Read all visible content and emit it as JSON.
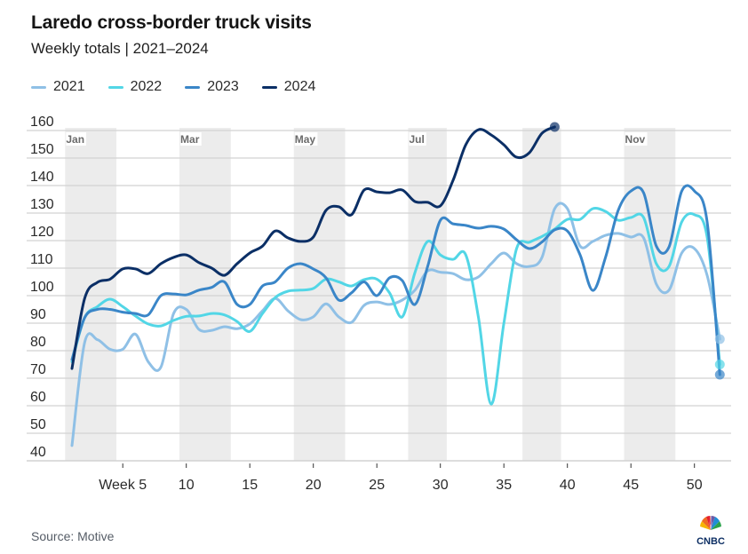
{
  "header": {
    "title": "Laredo cross-border truck visits",
    "subtitle": "Weekly totals | 2021–2024"
  },
  "footer": {
    "source": "Source: Motive",
    "logo_text": "CNBC"
  },
  "chart_data": {
    "type": "line",
    "title": "Laredo cross-border truck visits",
    "subtitle": "Weekly totals | 2021–2024",
    "xlabel": "",
    "ylabel": "",
    "xlim": [
      1,
      52
    ],
    "ylim": [
      40,
      160
    ],
    "grid": true,
    "legend_position": "top-left",
    "y_ticks": [
      40,
      50,
      60,
      70,
      80,
      90,
      100,
      110,
      120,
      130,
      140,
      150,
      160
    ],
    "x_ticks": [
      {
        "value": 5,
        "label": "Week 5"
      },
      {
        "value": 10,
        "label": "10"
      },
      {
        "value": 15,
        "label": "15"
      },
      {
        "value": 20,
        "label": "20"
      },
      {
        "value": 25,
        "label": "25"
      },
      {
        "value": 30,
        "label": "30"
      },
      {
        "value": 35,
        "label": "35"
      },
      {
        "value": 40,
        "label": "40"
      },
      {
        "value": 45,
        "label": "45"
      },
      {
        "value": 50,
        "label": "50"
      }
    ],
    "month_bands": [
      {
        "label": "Jan",
        "start_week": 0.5,
        "end_week": 4.5
      },
      {
        "label": "Mar",
        "start_week": 9.5,
        "end_week": 13.5
      },
      {
        "label": "May",
        "start_week": 18.5,
        "end_week": 22.5
      },
      {
        "label": "Jul",
        "start_week": 27.5,
        "end_week": 30.5
      },
      {
        "label": "",
        "start_week": 36.5,
        "end_week": 39.5
      },
      {
        "label": "Nov",
        "start_week": 44.5,
        "end_week": 48.5
      }
    ],
    "series": [
      {
        "name": "2021",
        "color": "#8fc0e6",
        "end_marker": true,
        "values": [
          45.5,
          83,
          84,
          80.5,
          80.5,
          86,
          76,
          74,
          93.5,
          95,
          87.7,
          87.4,
          88.7,
          88,
          89.7,
          94.5,
          99,
          94.5,
          91.3,
          92.3,
          97,
          92.3,
          90.3,
          96.5,
          97.7,
          96.8,
          98.4,
          102,
          109,
          108.5,
          108,
          105.8,
          106.8,
          111.6,
          115.5,
          111.6,
          110.6,
          113.9,
          131.6,
          131.6,
          118,
          119.7,
          121.9,
          122.6,
          121.3,
          121,
          104.2,
          102,
          115.5,
          117.1,
          107.4,
          84.2
        ]
      },
      {
        "name": "2022",
        "color": "#52d6e6",
        "end_marker": true,
        "values": [
          76,
          92,
          96,
          98.7,
          96,
          92.6,
          89.7,
          89,
          91,
          92.5,
          92.6,
          93.5,
          93,
          90.6,
          87,
          93.5,
          99.3,
          101.6,
          102,
          102.6,
          106,
          105,
          103.5,
          105.8,
          106,
          101,
          92.3,
          108.4,
          119.7,
          114.8,
          113.2,
          114.8,
          92,
          60.6,
          90,
          117.1,
          119.4,
          121.5,
          124.2,
          127.7,
          127.7,
          131.6,
          130.6,
          127.4,
          128.4,
          128.4,
          111.6,
          110.6,
          126.8,
          129.4,
          121.3,
          75
        ]
      },
      {
        "name": "2023",
        "color": "#3a86c8",
        "end_marker": true,
        "values": [
          76.8,
          92,
          95,
          95,
          94,
          93.5,
          93,
          100,
          100.6,
          100.3,
          102,
          103,
          105,
          96.8,
          96.8,
          103.5,
          105,
          110,
          111.6,
          109.7,
          106.5,
          98.4,
          101,
          105,
          100,
          106.5,
          105.5,
          96.8,
          110.6,
          127.4,
          126.1,
          125.5,
          124.5,
          125.2,
          124.2,
          120.3,
          117.1,
          119.5,
          123.9,
          123.5,
          114.8,
          101.9,
          113.9,
          131,
          138,
          137.4,
          118,
          117.7,
          138,
          138,
          126.8,
          71.3
        ]
      },
      {
        "name": "2024",
        "color": "#0b2f66",
        "end_marker": true,
        "values": [
          73.5,
          99,
          104.8,
          106,
          109.7,
          109.7,
          108,
          111.6,
          113.9,
          114.8,
          112,
          110,
          107.4,
          111.6,
          115.5,
          118,
          123.5,
          121,
          119.7,
          121.3,
          131,
          132.3,
          129.4,
          138.4,
          137.7,
          137.4,
          138.4,
          134.2,
          133.9,
          132.6,
          141.9,
          154.8,
          160.3,
          158.4,
          154.8,
          150.3,
          151.9,
          159,
          161.3
        ]
      }
    ]
  }
}
